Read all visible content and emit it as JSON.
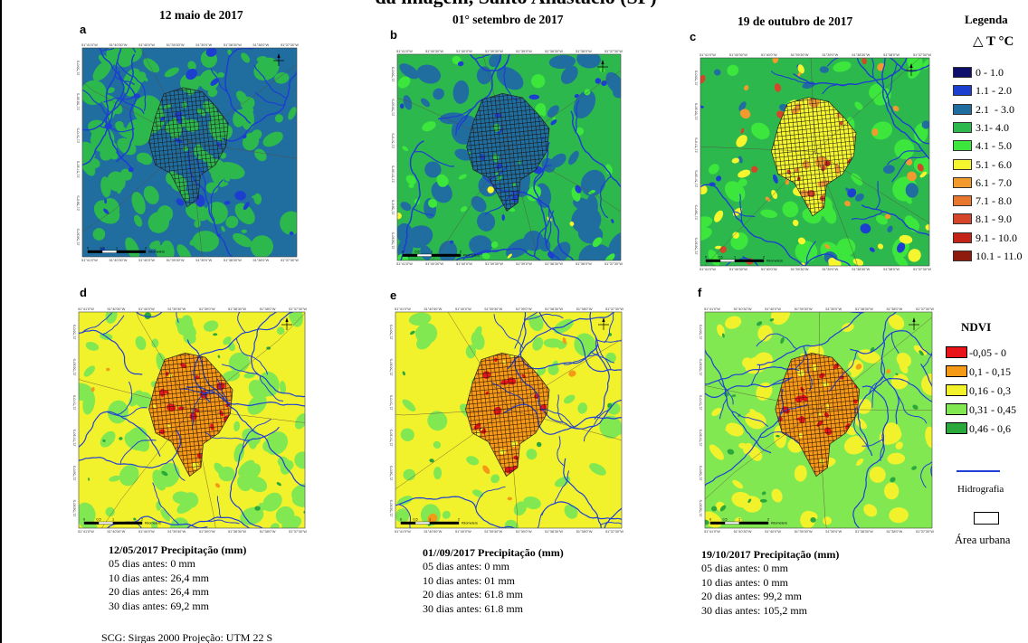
{
  "header": {
    "cut_title": "da imagem, Santo Anastácio (SP)",
    "dates": [
      "12 maio de 2017",
      "01° setembro de 2017",
      "19 de outubro de 2017"
    ]
  },
  "panels": [
    {
      "letter": "a"
    },
    {
      "letter": "b"
    },
    {
      "letter": "c"
    },
    {
      "letter": "d"
    },
    {
      "letter": "e"
    },
    {
      "letter": "f"
    }
  ],
  "map_axes": {
    "lon_ticks": [
      "51°41'0\"W",
      "51°40'30\"W",
      "51°40'0\"W",
      "51°39'30\"W",
      "51°39'0\"W",
      "51°38'30\"W",
      "51°38'0\"W",
      "51°37'30\"W"
    ],
    "lat_ticks": [
      "21°56'0\"S",
      "21°56'30\"S",
      "21°57'0\"S",
      "21°57'30\"S",
      "21°58'0\"S",
      "21°58'30\"S"
    ],
    "scale_labels": [
      "0",
      "0,5",
      "1",
      "2"
    ],
    "scale_unit": "Kilometers"
  },
  "legend": {
    "title": "Legenda",
    "dt_title": "△ T °C",
    "dt_items": [
      {
        "label": "0 - 1.0",
        "color": "#0d0f6b"
      },
      {
        "label": "1.1 - 2.0",
        "color": "#1d3fd0"
      },
      {
        "label": "2.1  - 3.0",
        "color": "#1f6e9f"
      },
      {
        "label": "3.1- 4.0",
        "color": "#2db84e"
      },
      {
        "label": "4.1 - 5.0",
        "color": "#3ce63c"
      },
      {
        "label": "5.1 - 6.0",
        "color": "#f6f62e"
      },
      {
        "label": "6.1 - 7.0",
        "color": "#f39a2e"
      },
      {
        "label": "7.1 - 8.0",
        "color": "#e8772d"
      },
      {
        "label": "8.1 - 9.0",
        "color": "#d4452a"
      },
      {
        "label": "9.1 - 10.0",
        "color": "#c42418"
      },
      {
        "label": "10.1 - 11.0",
        "color": "#8f1a0e"
      }
    ],
    "ndvi_title": "NDVI",
    "ndvi_items": [
      {
        "label": "-0,05 - 0",
        "color": "#e8141a"
      },
      {
        "label": "0,1 - 0,15",
        "color": "#f59a16"
      },
      {
        "label": "0,16 - 0,3",
        "color": "#f2f22c"
      },
      {
        "label": "0,31 - 0,45",
        "color": "#82e852"
      },
      {
        "label": "0,46 - 0,6",
        "color": "#2aa83c"
      }
    ],
    "hydro_label": "Hidrografia",
    "hydro_color": "#1f3fd6",
    "urban_label": "Área urbana"
  },
  "precipitation": [
    {
      "title": "12/05/2017 Precipitação (mm)",
      "lines": [
        "05 dias antes: 0 mm",
        "10 dias antes: 26,4 mm",
        "20 dias antes: 26,4 mm",
        "30 dias antes: 69,2 mm"
      ]
    },
    {
      "title": "01//09/2017 Precipitação (mm)",
      "lines": [
        "05 dias antes: 0 mm",
        "10 dias antes: 01 mm",
        "20 dias antes: 61.8 mm",
        "30 dias antes: 61.8 mm"
      ]
    },
    {
      "title": "19/10/2017 Precipitação (mm)",
      "lines": [
        "05 dias antes: 0 mm",
        "10 dias antes: 0 mm",
        "20 dias antes: 99,2 mm",
        "30 dias antes: 105,2 mm"
      ]
    }
  ],
  "footer": {
    "crs": "SCG: Sirgas 2000 Projeção: UTM 22 S"
  }
}
